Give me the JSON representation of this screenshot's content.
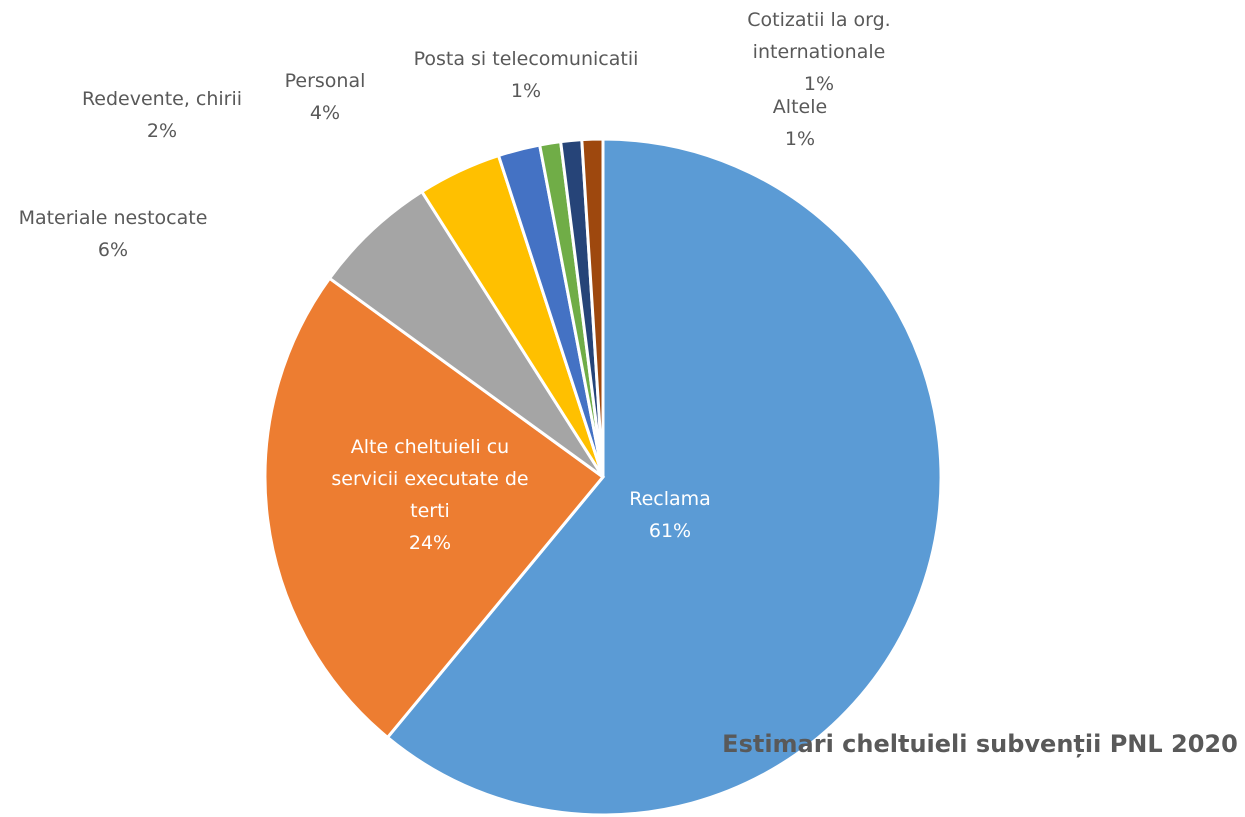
{
  "chart_data": {
    "type": "pie",
    "title": "Estimari cheltuieli subvenții PNL 2020",
    "categories": [
      "Reclama",
      "Alte cheltuieli cu servicii executate de terti",
      "Materiale nestocate",
      "Personal",
      "Redevente, chirii",
      "Posta si telecomunicatii",
      "Cotizatii la org. internationale",
      "Altele"
    ],
    "values": [
      61,
      24,
      6,
      4,
      2,
      1,
      1,
      1
    ],
    "value_labels": [
      "61%",
      "24%",
      "6%",
      "4%",
      "2%",
      "1%",
      "1%",
      "1%"
    ],
    "colors": [
      "#5b9bd5",
      "#ed7d31",
      "#a5a5a5",
      "#ffc000",
      "#4472c4",
      "#70ad47",
      "#264478",
      "#9e480e"
    ]
  }
}
